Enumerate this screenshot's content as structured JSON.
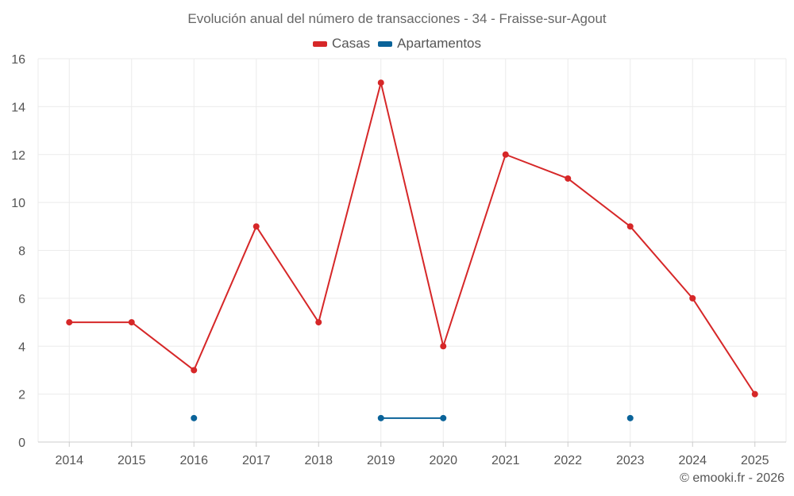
{
  "chart_data": {
    "type": "line",
    "title": "Evolución anual del número de transacciones - 34 - Fraisse-sur-Agout",
    "categories": [
      "2014",
      "2015",
      "2016",
      "2017",
      "2018",
      "2019",
      "2020",
      "2021",
      "2022",
      "2023",
      "2024",
      "2025"
    ],
    "series": [
      {
        "name": "Casas",
        "color": "#d62728",
        "values": [
          5,
          5,
          3,
          9,
          5,
          15,
          4,
          12,
          11,
          9,
          6,
          2
        ]
      },
      {
        "name": "Apartamentos",
        "color": "#0a6399",
        "values": [
          null,
          null,
          1,
          null,
          null,
          1,
          1,
          null,
          null,
          1,
          null,
          null
        ]
      }
    ],
    "ylim": [
      0,
      16
    ],
    "yticks": [
      0,
      2,
      4,
      6,
      8,
      10,
      12,
      14,
      16
    ],
    "xlabel": "",
    "ylabel": "",
    "grid": true,
    "legend": "top-center"
  },
  "credit": "© emooki.fr - 2026"
}
